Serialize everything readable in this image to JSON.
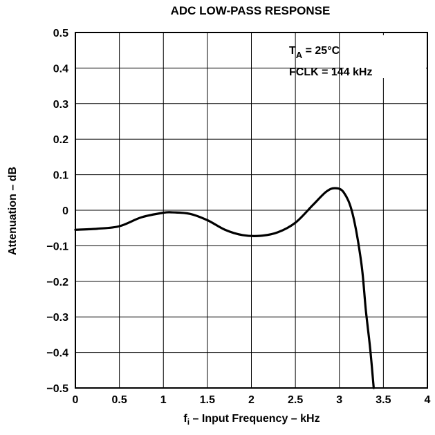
{
  "chart_data": {
    "type": "line",
    "title": "ADC LOW-PASS RESPONSE",
    "xlabel_main": "f",
    "xlabel_sub": "i",
    "xlabel_rest": " – Input Frequency – kHz",
    "ylabel": "Attenuation – dB",
    "xlim": [
      0,
      4
    ],
    "ylim": [
      -0.5,
      0.5
    ],
    "xticks": [
      0,
      0.5,
      1,
      1.5,
      2,
      2.5,
      3,
      3.5,
      4
    ],
    "yticks": [
      0.5,
      0.4,
      0.3,
      0.2,
      0.1,
      0,
      -0.1,
      -0.2,
      -0.3,
      -0.4,
      -0.5
    ],
    "xtick_labels": [
      "0",
      "0.5",
      "1",
      "1.5",
      "2",
      "2.5",
      "3",
      "3.5",
      "4"
    ],
    "ytick_labels": [
      "0.5",
      "0.4",
      "0.3",
      "0.2",
      "0.1",
      "0",
      "−0.1",
      "−0.2",
      "−0.3",
      "−0.4",
      "−0.5"
    ],
    "grid": true,
    "annotations": {
      "ta_T": "T",
      "ta_sub": "A",
      "ta_rest": " = 25°C",
      "fclk": "FCLK = 144 kHz"
    },
    "series": [
      {
        "x": [
          0,
          0.25,
          0.5,
          0.75,
          1.0,
          1.1,
          1.3,
          1.5,
          1.7,
          1.9,
          2.1,
          2.3,
          2.5,
          2.7,
          2.85,
          2.95,
          3.05,
          3.15,
          3.25,
          3.3,
          3.35,
          3.39
        ],
        "y": [
          -0.055,
          -0.052,
          -0.045,
          -0.02,
          -0.007,
          -0.006,
          -0.01,
          -0.028,
          -0.055,
          -0.07,
          -0.072,
          -0.062,
          -0.035,
          0.015,
          0.052,
          0.062,
          0.05,
          -0.01,
          -0.15,
          -0.28,
          -0.39,
          -0.5
        ]
      }
    ],
    "line_color": "#000000"
  }
}
